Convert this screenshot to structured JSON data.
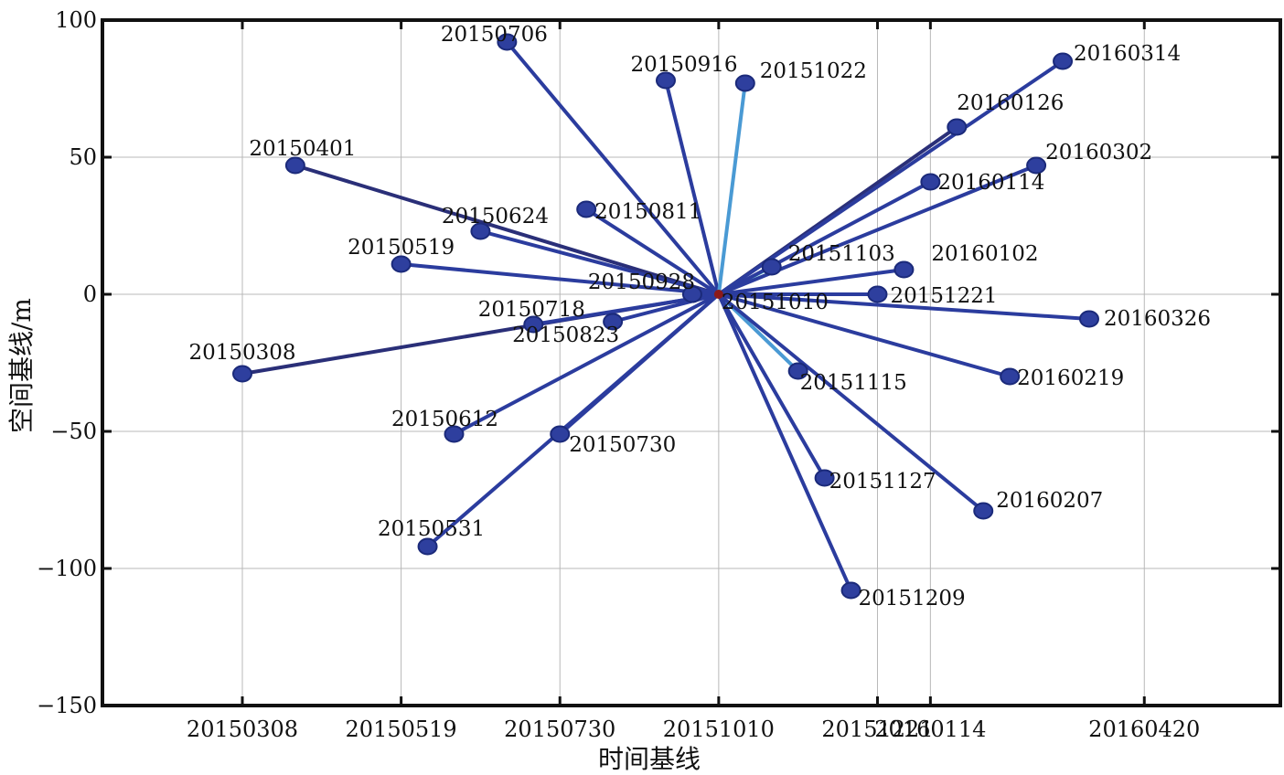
{
  "chart_data": {
    "type": "scatter",
    "subtype": "star-baseline-network",
    "xlabel": "时间基线",
    "ylabel": "空间基线/m",
    "x_tick_labels": [
      "20150308",
      "20150519",
      "20150730",
      "20151010",
      "20151221",
      "20160114",
      "20160420"
    ],
    "y_ticks": [
      100,
      50,
      0,
      -50,
      -100,
      -150
    ],
    "y_tick_labels": [
      "100",
      "50",
      "0",
      "−50",
      "−100",
      "−150"
    ],
    "ylim": [
      -150,
      100
    ],
    "grid": true,
    "master": {
      "date": "20151010",
      "y": 0,
      "color": "#8b1a1a"
    },
    "colors": {
      "node": "#2e3f9e",
      "node_edge": "#1b2a7a",
      "line": "#2b3c9e",
      "line_dark": "#2a2f78",
      "line_light": "#4a9ad4"
    },
    "points": [
      {
        "date": "20150308",
        "y": -29
      },
      {
        "date": "20150401",
        "y": 47
      },
      {
        "date": "20150519",
        "y": 11
      },
      {
        "date": "20150531",
        "y": -92
      },
      {
        "date": "20150612",
        "y": -51
      },
      {
        "date": "20150624",
        "y": 23
      },
      {
        "date": "20150706",
        "y": 92
      },
      {
        "date": "20150718",
        "y": -11
      },
      {
        "date": "20150730",
        "y": -51
      },
      {
        "date": "20150811",
        "y": 31
      },
      {
        "date": "20150823",
        "y": -10
      },
      {
        "date": "20150916",
        "y": 78
      },
      {
        "date": "20150928",
        "y": 0
      },
      {
        "date": "20151022",
        "y": 77
      },
      {
        "date": "20151103",
        "y": 10
      },
      {
        "date": "20151115",
        "y": -28
      },
      {
        "date": "20151127",
        "y": -67
      },
      {
        "date": "20151209",
        "y": -108
      },
      {
        "date": "20151221",
        "y": 0
      },
      {
        "date": "20160102",
        "y": 9
      },
      {
        "date": "20160114",
        "y": 41
      },
      {
        "date": "20160126",
        "y": 61
      },
      {
        "date": "20160207",
        "y": -79
      },
      {
        "date": "20160219",
        "y": -30
      },
      {
        "date": "20160302",
        "y": 47
      },
      {
        "date": "20160314",
        "y": 85
      },
      {
        "date": "20160326",
        "y": -9
      }
    ]
  }
}
